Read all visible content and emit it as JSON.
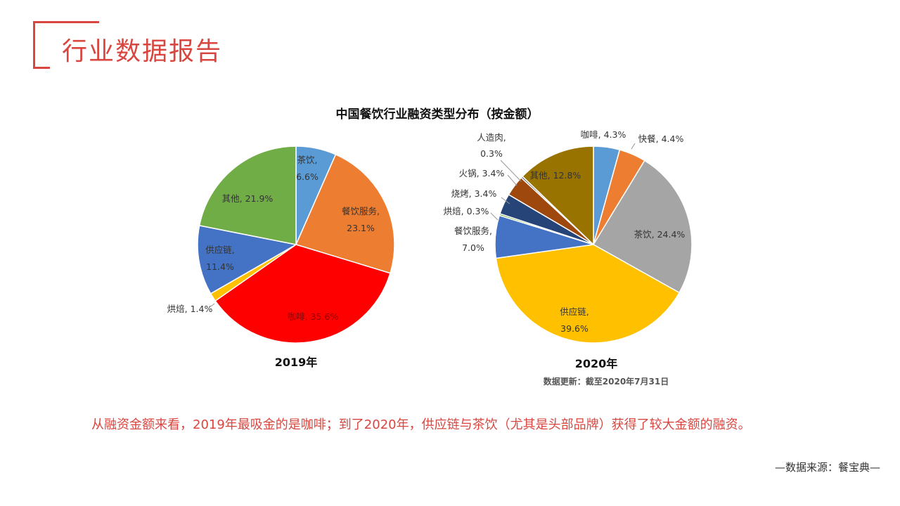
{
  "page": {
    "title": "行业数据报告",
    "summary": "从融资金额来看，2019年最吸金的是咖啡；到了2020年，供应链与茶饮（尤其是头部品牌）获得了较大金额的融资。",
    "source": "—数据来源：餐宝典—"
  },
  "chart_data": [
    {
      "type": "pie",
      "title": "中国餐饮行业融资类型分布（按金额）",
      "subtitle": "2019年",
      "slices": [
        {
          "label": "茶饮",
          "value": 6.6,
          "display": "6.6%",
          "color": "#5b9bd5"
        },
        {
          "label": "餐饮服务",
          "value": 23.1,
          "display": "23.1%",
          "color": "#ed7d31"
        },
        {
          "label": "咖啡",
          "value": 35.6,
          "display": "35.6%",
          "color": "#ff0000"
        },
        {
          "label": "烘焙",
          "value": 1.4,
          "display": "1.4%",
          "color": "#ffc000"
        },
        {
          "label": "供应链",
          "value": 11.4,
          "display": "11.4%",
          "color": "#4472c4"
        },
        {
          "label": "其他",
          "value": 21.9,
          "display": "21.9%",
          "color": "#70ad47"
        }
      ]
    },
    {
      "type": "pie",
      "subtitle": "2020年",
      "note": "数据更新：截至2020年7月31日",
      "slices": [
        {
          "label": "咖啡",
          "value": 4.3,
          "display": "4.3%",
          "color": "#5b9bd5"
        },
        {
          "label": "快餐",
          "value": 4.4,
          "display": "4.4%",
          "color": "#ed7d31"
        },
        {
          "label": "茶饮",
          "value": 24.4,
          "display": "24.4%",
          "color": "#a5a5a5"
        },
        {
          "label": "供应链",
          "value": 39.6,
          "display": "39.6%",
          "color": "#ffc000"
        },
        {
          "label": "餐饮服务",
          "value": 7.0,
          "display": "7.0%",
          "color": "#4472c4"
        },
        {
          "label": "烘焙",
          "value": 0.3,
          "display": "0.3%",
          "color": "#70ad47"
        },
        {
          "label": "烧烤",
          "value": 3.4,
          "display": "3.4%",
          "color": "#264478"
        },
        {
          "label": "火锅",
          "value": 3.4,
          "display": "3.4%",
          "color": "#9e480e"
        },
        {
          "label": "人造肉",
          "value": 0.3,
          "display": "0.3%",
          "color": "#636363"
        },
        {
          "label": "其他",
          "value": 12.8,
          "display": "12.8%",
          "color": "#997300"
        }
      ]
    }
  ]
}
